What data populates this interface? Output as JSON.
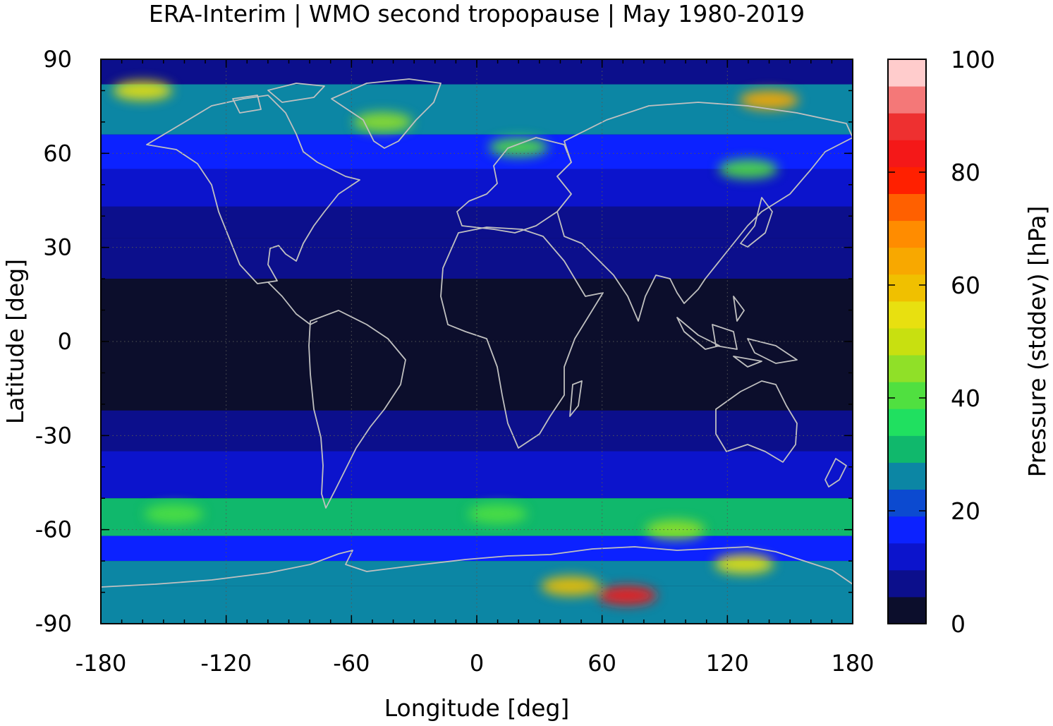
{
  "title": "ERA-Interim | WMO second tropopause | May 1980-2019",
  "map": {
    "x_label": "Longitude [deg]",
    "y_label": "Latitude [deg]",
    "x_range": [
      -180,
      180
    ],
    "y_range": [
      -90,
      90
    ],
    "x_ticks": [
      "-180",
      "-120",
      "-60",
      "0",
      "60",
      "120",
      "180"
    ],
    "y_ticks": [
      "90",
      "60",
      "30",
      "0",
      "-30",
      "-60",
      "-90"
    ],
    "grid": "dotted",
    "coastline_color": "#c0c0c0",
    "latitude_bands": [
      {
        "lat": [
          82,
          90
        ],
        "level": 5,
        "note": "north pole cap"
      },
      {
        "lat": [
          66,
          82
        ],
        "level": 25
      },
      {
        "lat": [
          55,
          66
        ],
        "level": 15
      },
      {
        "lat": [
          43,
          55
        ],
        "level": 10
      },
      {
        "lat": [
          33,
          43
        ],
        "level": 9
      },
      {
        "lat": [
          20,
          33
        ],
        "level": 7
      },
      {
        "lat": [
          -22,
          20
        ],
        "level": 2
      },
      {
        "lat": [
          -35,
          -22
        ],
        "level": 7
      },
      {
        "lat": [
          -45,
          -35
        ],
        "level": 10
      },
      {
        "lat": [
          -50,
          -45
        ],
        "level": 14
      },
      {
        "lat": [
          -62,
          -50
        ],
        "level": 32
      },
      {
        "lat": [
          -70,
          -62
        ],
        "level": 18
      },
      {
        "lat": [
          -78,
          -70
        ],
        "level": 24
      },
      {
        "lat": [
          -90,
          -78
        ],
        "level": 27
      }
    ],
    "hotspots": [
      {
        "lon": 72,
        "lat": -81,
        "value": 85
      },
      {
        "lon": 45,
        "lat": -78,
        "value": 58
      },
      {
        "lon": 128,
        "lat": -71,
        "value": 55
      },
      {
        "lon": 140,
        "lat": 77,
        "value": 62
      },
      {
        "lon": -160,
        "lat": 80,
        "value": 55
      },
      {
        "lon": -45,
        "lat": 70,
        "value": 45
      },
      {
        "lon": 20,
        "lat": 62,
        "value": 40
      },
      {
        "lon": 130,
        "lat": 55,
        "value": 42
      },
      {
        "lon": -145,
        "lat": -55,
        "value": 42
      },
      {
        "lon": 10,
        "lat": -55,
        "value": 40
      },
      {
        "lon": 95,
        "lat": -60,
        "value": 45
      }
    ]
  },
  "colorbar": {
    "label": "Pressure (stddev) [hPa]",
    "min": 0,
    "max": 100,
    "ticks": [
      "100",
      "80",
      "60",
      "40",
      "20",
      "0"
    ],
    "colors": [
      "#0c0e2c",
      "#0c0f8c",
      "#0c14cc",
      "#0c22ff",
      "#0c4ad0",
      "#0c86a4",
      "#10b86c",
      "#20e060",
      "#50e040",
      "#90e028",
      "#c8e010",
      "#e8e010",
      "#f0c000",
      "#f8a800",
      "#ff8c00",
      "#ff6000",
      "#ff2000",
      "#f41818",
      "#ee3030",
      "#f47878",
      "#ffcccc"
    ]
  }
}
